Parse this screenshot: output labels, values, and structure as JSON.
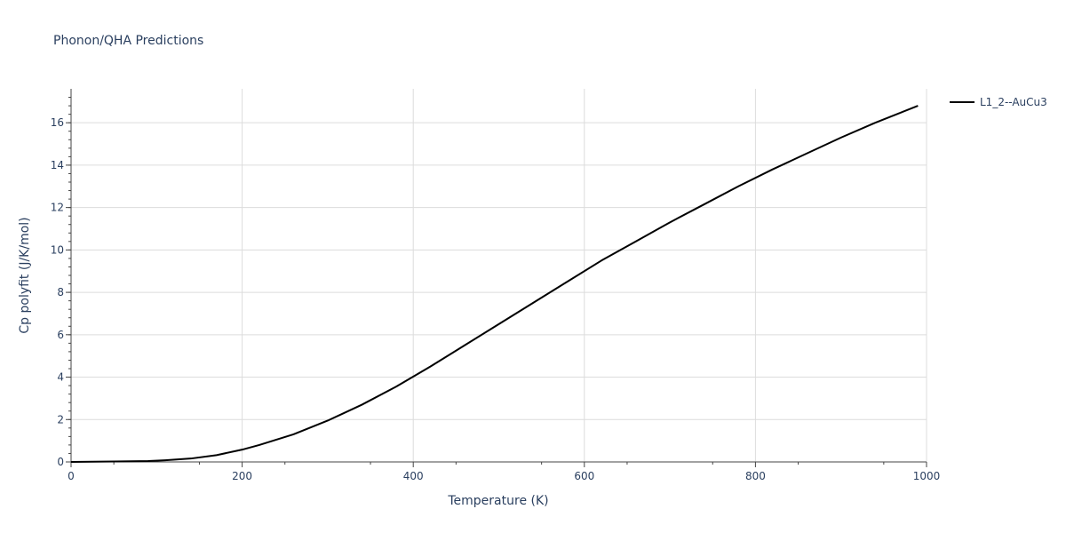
{
  "chart_data": {
    "type": "line",
    "title": "Phonon/QHA Predictions",
    "xlabel": "Temperature (K)",
    "ylabel": "Cp polyfit (J/K/mol)",
    "xlim": [
      0,
      1000
    ],
    "ylim": [
      0,
      17.6
    ],
    "x_ticks": [
      0,
      200,
      400,
      600,
      800,
      1000
    ],
    "y_ticks": [
      0,
      2,
      4,
      6,
      8,
      10,
      12,
      14,
      16
    ],
    "grid": true,
    "legend_position": "top-right",
    "series": [
      {
        "name": "L1_2--AuCu3",
        "color": "#000000",
        "x": [
          0,
          50,
          90,
          110,
          140,
          170,
          200,
          220,
          260,
          300,
          340,
          380,
          420,
          460,
          500,
          540,
          580,
          620,
          660,
          700,
          740,
          780,
          820,
          860,
          900,
          940,
          990
        ],
        "y": [
          0,
          0.02,
          0.04,
          0.08,
          0.16,
          0.32,
          0.58,
          0.8,
          1.3,
          1.95,
          2.7,
          3.55,
          4.5,
          5.5,
          6.5,
          7.5,
          8.5,
          9.5,
          10.4,
          11.3,
          12.15,
          13.0,
          13.8,
          14.55,
          15.3,
          16.0,
          16.8
        ]
      }
    ]
  }
}
